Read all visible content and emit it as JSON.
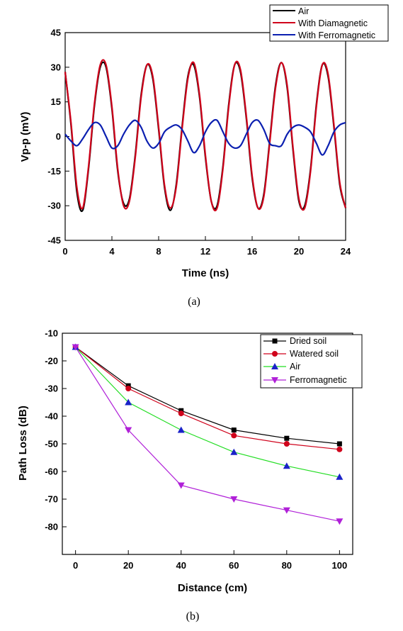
{
  "chart_data": [
    {
      "type": "line",
      "caption": "(a)",
      "xlabel": "Time (ns)",
      "ylabel": "Vp-p (mV)",
      "xlim": [
        0,
        24
      ],
      "ylim": [
        -45,
        45
      ],
      "xticks": [
        0,
        4,
        8,
        12,
        16,
        20,
        24
      ],
      "yticks": [
        45,
        30,
        15,
        0,
        -15,
        -30,
        -45
      ],
      "legend_position": "top-right",
      "series": [
        {
          "name": "Air",
          "color": "#000000",
          "x": [
            0,
            0.5,
            1.0,
            1.5,
            2.0,
            2.5,
            3.0,
            3.5,
            4.0,
            4.5,
            5.0,
            5.5,
            6.0,
            6.5,
            7.0,
            7.5,
            8.0,
            8.5,
            9.0,
            9.5,
            10.0,
            10.5,
            11.0,
            11.5,
            12.0,
            12.5,
            13.0,
            13.5,
            14.0,
            14.5,
            15.0,
            15.5,
            16.0,
            16.5,
            17.0,
            17.5,
            18.0,
            18.5,
            19.0,
            19.5,
            20.0,
            20.5,
            21.0,
            21.5,
            22.0,
            22.5,
            23.0,
            23.5,
            24.0
          ],
          "values": [
            28,
            5,
            -24,
            -32,
            -14,
            13,
            30,
            30,
            12,
            -15,
            -29,
            -27,
            -8,
            18,
            31,
            25,
            3,
            -22,
            -32,
            -21,
            4,
            26,
            31,
            17,
            -9,
            -28,
            -30,
            -13,
            14,
            31,
            28,
            8,
            -18,
            -31,
            -25,
            -2,
            22,
            32,
            21,
            -6,
            -28,
            -30,
            -14,
            14,
            31,
            26,
            4,
            -21,
            -31
          ]
        },
        {
          "name": "With Diamagnetic",
          "color": "#d0021b",
          "x": [
            0,
            0.5,
            1.0,
            1.5,
            2.0,
            2.5,
            3.0,
            3.5,
            4.0,
            4.5,
            5.0,
            5.5,
            6.0,
            6.5,
            7.0,
            7.5,
            8.0,
            8.5,
            9.0,
            9.5,
            10.0,
            10.5,
            11.0,
            11.5,
            12.0,
            12.5,
            13.0,
            13.5,
            14.0,
            14.5,
            15.0,
            15.5,
            16.0,
            16.5,
            17.0,
            17.5,
            18.0,
            18.5,
            19.0,
            19.5,
            20.0,
            20.5,
            21.0,
            21.5,
            22.0,
            22.5,
            23.0,
            23.5,
            24.0
          ],
          "values": [
            28,
            6,
            -22,
            -31,
            -13,
            14,
            31,
            31,
            13,
            -14,
            -30,
            -28,
            -9,
            17,
            31,
            26,
            4,
            -21,
            -31,
            -22,
            3,
            25,
            32,
            18,
            -8,
            -28,
            -31,
            -14,
            13,
            31,
            29,
            9,
            -17,
            -31,
            -26,
            -3,
            21,
            32,
            22,
            -5,
            -27,
            -31,
            -15,
            13,
            31,
            27,
            5,
            -20,
            -31
          ]
        },
        {
          "name": "With Ferromagnetic",
          "color": "#0b1fb0",
          "x": [
            0,
            0.5,
            1.0,
            1.5,
            2.0,
            2.5,
            3.0,
            3.5,
            4.0,
            4.5,
            5.0,
            5.5,
            6.0,
            6.5,
            7.0,
            7.5,
            8.0,
            8.5,
            9.0,
            9.5,
            10.0,
            10.5,
            11.0,
            11.5,
            12.0,
            12.5,
            13.0,
            13.5,
            14.0,
            14.5,
            15.0,
            15.5,
            16.0,
            16.5,
            17.0,
            17.5,
            18.0,
            18.5,
            19.0,
            19.5,
            20.0,
            20.5,
            21.0,
            21.5,
            22.0,
            22.5,
            23.0,
            23.5,
            24.0
          ],
          "values": [
            1,
            -2,
            -4,
            -1,
            3,
            6,
            5,
            0,
            -5,
            -4,
            1,
            5,
            7,
            4,
            -2,
            -5,
            -3,
            2,
            4,
            5,
            3,
            -2,
            -7,
            -4,
            2,
            6,
            7,
            2,
            -3,
            -5,
            -4,
            1,
            6,
            7,
            3,
            -3,
            -4,
            -4,
            1,
            4,
            5,
            4,
            2,
            -3,
            -8,
            -4,
            2,
            5,
            6
          ]
        }
      ]
    },
    {
      "type": "line",
      "caption": "(b)",
      "xlabel": "Distance (cm)",
      "ylabel": "Path Loss (dB)",
      "xlim": [
        -5,
        105
      ],
      "ylim": [
        -90,
        -10
      ],
      "xticks": [
        0,
        20,
        40,
        60,
        80,
        100
      ],
      "yticks": [
        -10,
        -20,
        -30,
        -40,
        -50,
        -60,
        -70,
        -80
      ],
      "legend_position": "top-right",
      "x": [
        0,
        20,
        40,
        60,
        80,
        100
      ],
      "series": [
        {
          "name": "Dried soil",
          "color": "#000000",
          "marker": "square",
          "values": [
            -15,
            -29,
            -38,
            -45,
            -48,
            -50
          ]
        },
        {
          "name": "Watered soil",
          "color": "#d0021b",
          "marker": "circle",
          "values": [
            -15,
            -30,
            -39,
            -47,
            -50,
            -52
          ]
        },
        {
          "name": "Air",
          "color": "#22dd22",
          "marker": "triangle-up",
          "values": [
            -15,
            -35,
            -45,
            -53,
            -58,
            -62
          ]
        },
        {
          "name": "Ferromagnetic",
          "color": "#b020d8",
          "marker": "triangle-down",
          "values": [
            -15,
            -45,
            -65,
            -70,
            -74,
            -78
          ]
        }
      ]
    }
  ]
}
